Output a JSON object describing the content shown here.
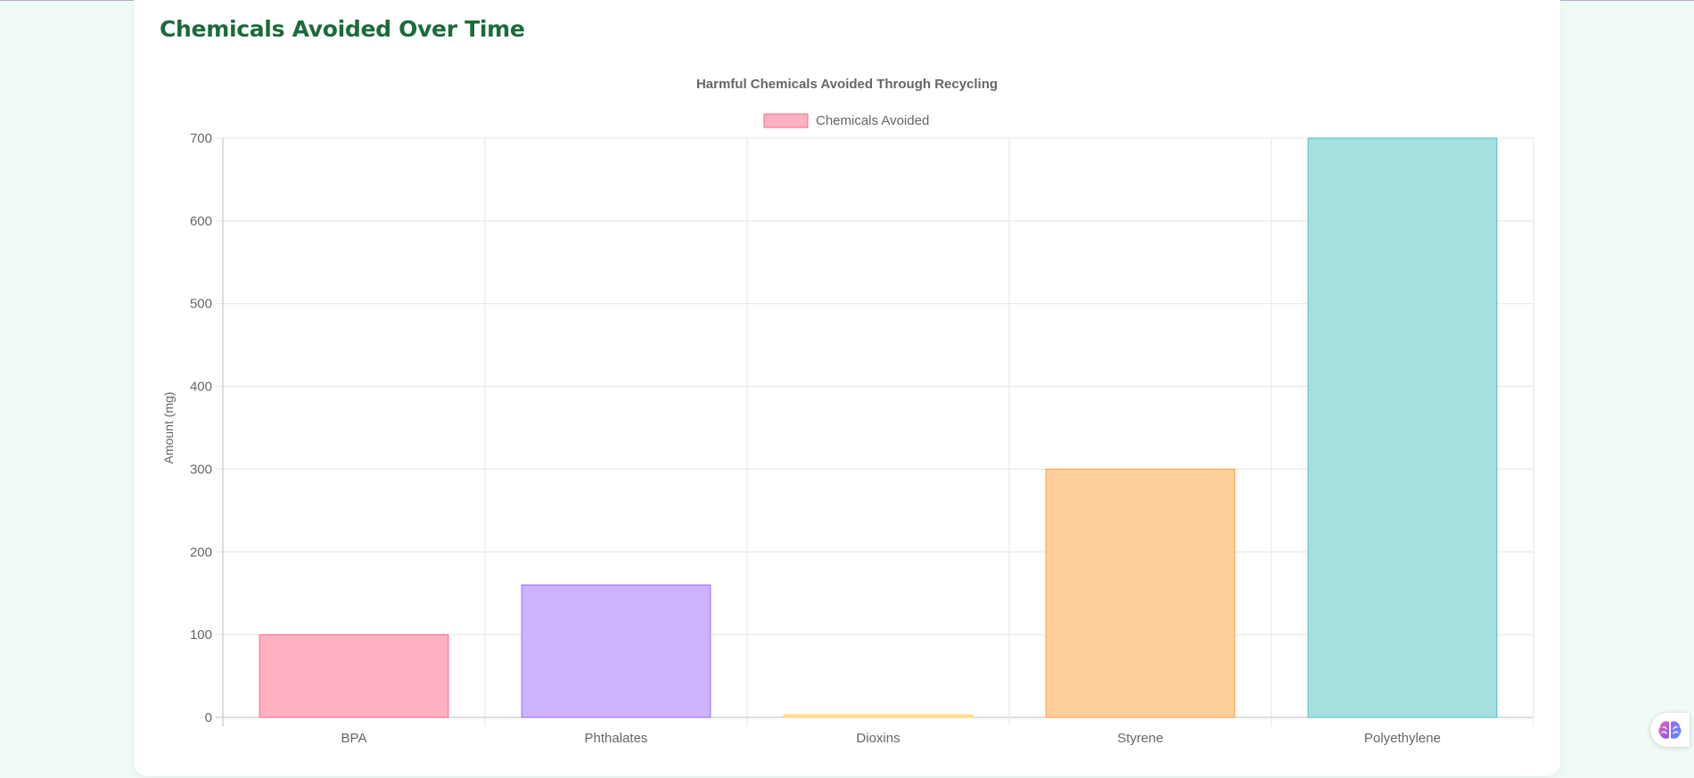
{
  "page": {
    "title": "Chemicals Avoided Over Time"
  },
  "chart_data": {
    "type": "bar",
    "title": "Harmful Chemicals Avoided Through Recycling",
    "categories": [
      "BPA",
      "Phthalates",
      "Dioxins",
      "Styrene",
      "Polyethylene"
    ],
    "series": [
      {
        "name": "Chemicals Avoided",
        "values": [
          100,
          160,
          3,
          300,
          700
        ]
      }
    ],
    "xlabel": "",
    "ylabel": "Amount (mg)",
    "ylim": [
      0,
      700
    ],
    "yticks": [
      0,
      100,
      200,
      300,
      400,
      500,
      600,
      700
    ],
    "grid": true,
    "legend_position": "top",
    "bar_fill_colors": [
      "#ffb1c1",
      "#cdb3fe",
      "#ffe6a9",
      "#ffcf9e",
      "#a5dfdf"
    ],
    "bar_border_colors": [
      "#ff6384",
      "#9966ff",
      "#ffcd56",
      "#ff9f40",
      "#4bc0c0"
    ],
    "legend_swatch": {
      "fill": "#ffb1c1",
      "border": "#ff6384"
    }
  },
  "icons": {
    "assistant": "brain-icon"
  }
}
